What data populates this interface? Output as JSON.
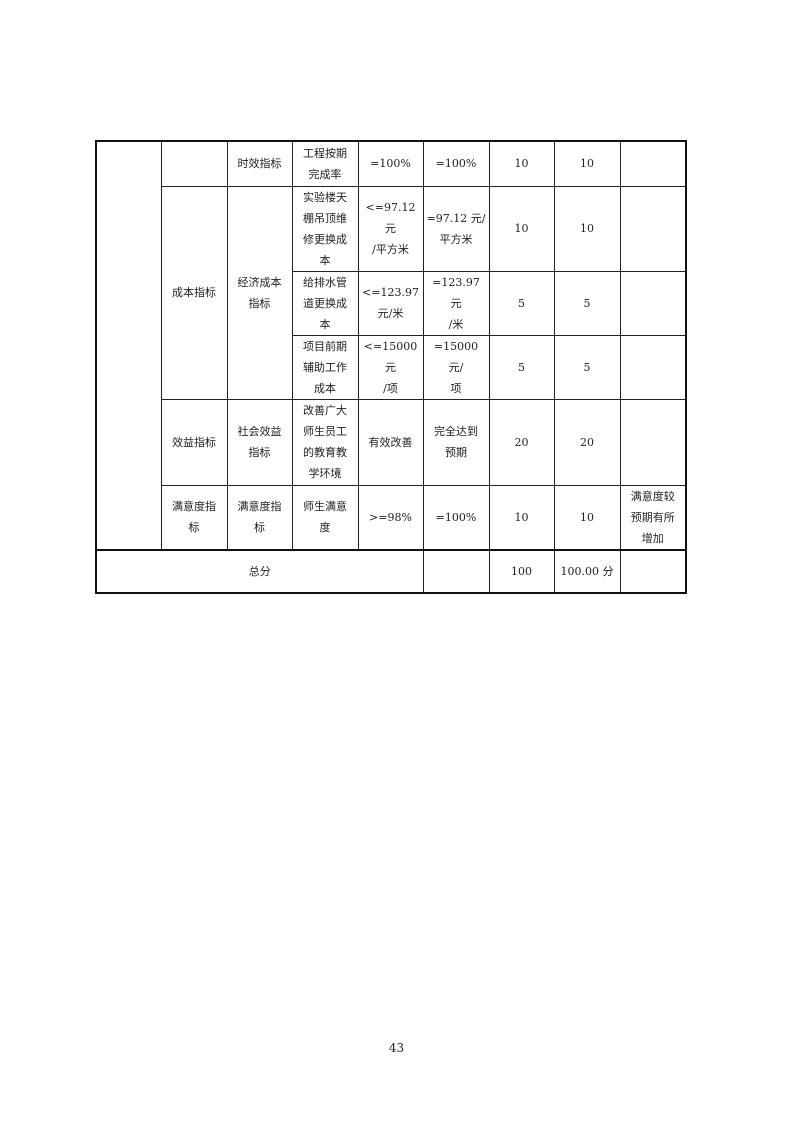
{
  "table": {
    "rows": [
      {
        "level2": "",
        "level3": "时效指标",
        "indicator": "工程按期\n完成率",
        "target": "=100%",
        "actual": "=100%",
        "weight": "10",
        "score": "10",
        "note": ""
      },
      {
        "level2": "成本指标",
        "level3": "经济成本\n指标",
        "indicator": "实验楼天\n棚吊顶维\n修更换成\n本",
        "target": "<=97.12 元\n/平方米",
        "actual": "=97.12 元/\n平方米",
        "weight": "10",
        "score": "10",
        "note": ""
      },
      {
        "indicator": "给排水管\n道更换成\n本",
        "target": "<=123.97\n元/米",
        "actual": "=123.97 元\n/米",
        "weight": "5",
        "score": "5",
        "note": ""
      },
      {
        "indicator": "项目前期\n辅助工作\n成本",
        "target": "<=15000 元\n/项",
        "actual": "=15000 元/\n项",
        "weight": "5",
        "score": "5",
        "note": ""
      },
      {
        "level2": "效益指标",
        "level3": "社会效益\n指标",
        "indicator": "改善广大\n师生员工\n的教育教\n学环境",
        "target": "有效改善",
        "actual": "完全达到\n预期",
        "weight": "20",
        "score": "20",
        "note": ""
      },
      {
        "level2": "满意度指\n标",
        "level3": "满意度指\n标",
        "indicator": "师生满意\n度",
        "target": ">=98%",
        "actual": "=100%",
        "weight": "10",
        "score": "10",
        "note": "满意度较\n预期有所\n增加"
      }
    ],
    "total": {
      "label": "总分",
      "actual": "",
      "weight": "100",
      "score": "100.00 分",
      "note": ""
    }
  },
  "page_number": "43"
}
